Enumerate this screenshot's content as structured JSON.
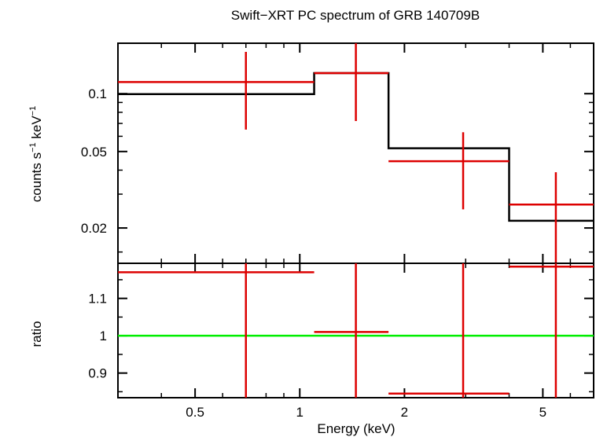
{
  "chart_data": {
    "type": "line",
    "title": "Swift−XRT PC spectrum of GRB 140709B",
    "xlabel": "Energy (keV)",
    "xscale": "log",
    "xlim": [
      0.3,
      7.0
    ],
    "x_ticks": [
      {
        "value": 0.5,
        "label": "0.5"
      },
      {
        "value": 1,
        "label": "1"
      },
      {
        "value": 2,
        "label": "2"
      },
      {
        "value": 5,
        "label": "5"
      }
    ],
    "panels": [
      {
        "name": "spectrum",
        "ylabel_main": "counts s",
        "ylabel_sup1": "−1",
        "ylabel_mid": " keV",
        "ylabel_sup2": "−1",
        "yscale": "log",
        "ylim": [
          0.0131,
          0.183
        ],
        "y_ticks": [
          {
            "value": 0.1,
            "label": "0.1"
          },
          {
            "value": 0.05,
            "label": "0.05"
          },
          {
            "value": 0.02,
            "label": "0.02"
          }
        ],
        "data": {
          "name": "data",
          "color": "#dd0000",
          "points": [
            {
              "x": 0.7,
              "xlo": 0.3,
              "xhi": 1.1,
              "y": 0.115,
              "ylo": 0.065,
              "yhi": 0.165
            },
            {
              "x": 1.45,
              "xlo": 1.1,
              "xhi": 1.8,
              "y": 0.128,
              "ylo": 0.072,
              "yhi": 0.19
            },
            {
              "x": 2.95,
              "xlo": 1.8,
              "xhi": 4.0,
              "y": 0.0445,
              "ylo": 0.025,
              "yhi": 0.063
            },
            {
              "x": 5.45,
              "xlo": 4.0,
              "xhi": 7.0,
              "y": 0.0265,
              "ylo": 0.0131,
              "yhi": 0.039
            }
          ]
        },
        "model": {
          "name": "model",
          "color": "#000000",
          "steps": [
            {
              "xlo": 0.3,
              "xhi": 1.1,
              "y": 0.0995
            },
            {
              "xlo": 1.1,
              "xhi": 1.8,
              "y": 0.128
            },
            {
              "xlo": 1.8,
              "xhi": 4.0,
              "y": 0.052
            },
            {
              "xlo": 4.0,
              "xhi": 7.0,
              "y": 0.0218
            }
          ]
        }
      },
      {
        "name": "ratio",
        "ylabel": "ratio",
        "yscale": "linear",
        "ylim": [
          0.834,
          1.194
        ],
        "y_ticks": [
          {
            "value": 0.9,
            "label": "0.9"
          },
          {
            "value": 1,
            "label": "1"
          },
          {
            "value": 1.1,
            "label": "1.1"
          }
        ],
        "reference_line": {
          "value": 1,
          "color": "#00ee00"
        },
        "data": {
          "name": "ratio",
          "color": "#dd0000",
          "points": [
            {
              "x": 0.7,
              "xlo": 0.3,
              "xhi": 1.1,
              "y": 1.17,
              "ylo": 0.834,
              "yhi": 1.194
            },
            {
              "x": 1.45,
              "xlo": 1.1,
              "xhi": 1.8,
              "y": 1.01,
              "ylo": 0.834,
              "yhi": 1.194
            },
            {
              "x": 2.95,
              "xlo": 1.8,
              "xhi": 4.0,
              "y": 0.845,
              "ylo": 0.834,
              "yhi": 1.194
            },
            {
              "x": 5.45,
              "xlo": 4.0,
              "xhi": 7.0,
              "y": 1.185,
              "ylo": 0.834,
              "yhi": 1.194
            }
          ]
        }
      }
    ]
  }
}
